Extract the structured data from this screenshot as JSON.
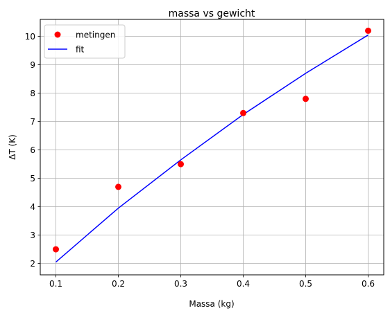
{
  "chart_data": {
    "type": "scatter",
    "title": "massa vs gewicht",
    "xlabel": "Massa (kg)",
    "ylabel": "ΔT (K)",
    "xlim": [
      0.075,
      0.625
    ],
    "ylim": [
      1.6,
      10.6
    ],
    "xticks": [
      0.1,
      0.2,
      0.3,
      0.4,
      0.5,
      0.6
    ],
    "xtick_labels": [
      "0.1",
      "0.2",
      "0.3",
      "0.4",
      "0.5",
      "0.6"
    ],
    "yticks": [
      2,
      3,
      4,
      5,
      6,
      7,
      8,
      9,
      10
    ],
    "ytick_labels": [
      "2",
      "3",
      "4",
      "5",
      "6",
      "7",
      "8",
      "9",
      "10"
    ],
    "grid": true,
    "legend_position": "top-left",
    "series": [
      {
        "name": "metingen",
        "kind": "scatter",
        "color": "#ff0000",
        "x": [
          0.1,
          0.2,
          0.3,
          0.4,
          0.5,
          0.6
        ],
        "y": [
          2.5,
          4.7,
          5.5,
          7.3,
          7.8,
          10.2
        ]
      },
      {
        "name": "fit",
        "kind": "line",
        "color": "#0000ff",
        "x": [
          0.1,
          0.2,
          0.3,
          0.4,
          0.5,
          0.6
        ],
        "y": [
          2.05,
          3.95,
          5.65,
          7.25,
          8.7,
          10.05
        ]
      }
    ]
  }
}
